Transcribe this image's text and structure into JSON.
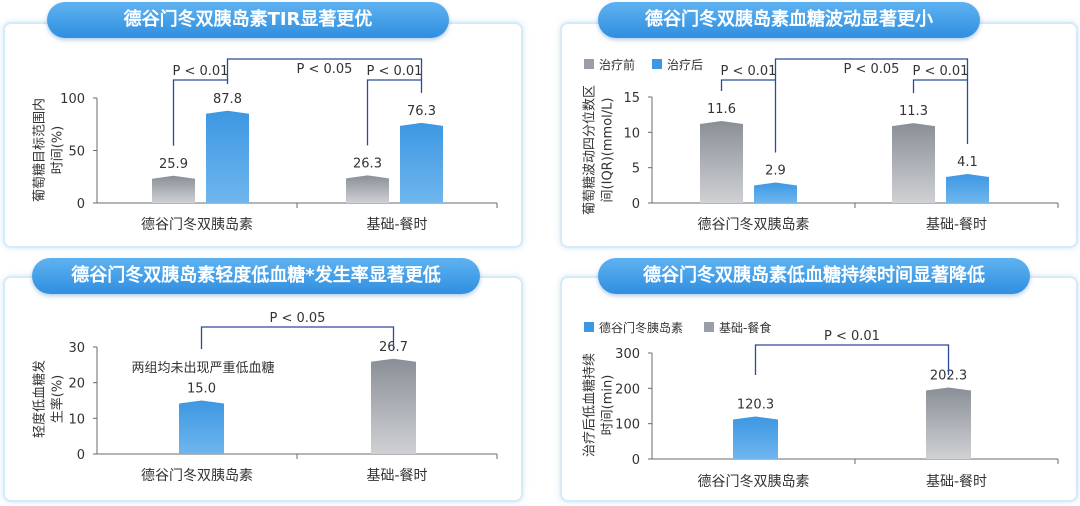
{
  "colors": {
    "gray": "#9a9ea6",
    "blue": "#3d97e2",
    "line": "#2b4b9a",
    "axis": "#6b6b6b"
  },
  "chart_data": [
    {
      "type": "bar",
      "title": "德谷门冬双胰岛素TIR显著更优",
      "ylabel_lines": [
        "葡萄糖目标范围内",
        "时间(%)"
      ],
      "ylim": [
        0,
        100
      ],
      "yticks": [
        "0",
        "50",
        "100"
      ],
      "ytick_values": [
        0,
        50,
        100
      ],
      "categories": [
        "德谷门冬双胰岛素",
        "基础-餐时"
      ],
      "series": [
        {
          "values": [
            25.9,
            26.3
          ],
          "labels": [
            "25.9",
            "26.3"
          ],
          "color": "gray"
        },
        {
          "values": [
            87.8,
            76.3
          ],
          "labels": [
            "87.8",
            "76.3"
          ],
          "color": "blue"
        }
      ],
      "annotations": [
        {
          "text": "P < 0.01",
          "type": "within",
          "group": 0
        },
        {
          "text": "P < 0.01",
          "type": "within",
          "group": 1
        },
        {
          "text": "P < 0.05",
          "type": "between-blue"
        }
      ]
    },
    {
      "type": "bar",
      "title": "德谷门冬双胰岛素血糖波动显著更小",
      "ylabel_lines": [
        "葡萄糖波动四分位数区",
        "间(IQR)(mmol/L)"
      ],
      "ylim": [
        0,
        15
      ],
      "yticks": [
        "0",
        "5",
        "10",
        "15"
      ],
      "ytick_values": [
        0,
        5,
        10,
        15
      ],
      "categories": [
        "德谷门冬双胰岛素",
        "基础-餐时"
      ],
      "legend": [
        {
          "label": "治疗前",
          "color": "gray"
        },
        {
          "label": "治疗后",
          "color": "blue"
        }
      ],
      "series": [
        {
          "name": "治疗前",
          "values": [
            11.6,
            11.3
          ],
          "labels": [
            "11.6",
            "11.3"
          ],
          "color": "gray"
        },
        {
          "name": "治疗后",
          "values": [
            2.9,
            4.1
          ],
          "labels": [
            "2.9",
            "4.1"
          ],
          "color": "blue"
        }
      ],
      "annotations": [
        {
          "text": "P < 0.01",
          "type": "within",
          "group": 0
        },
        {
          "text": "P < 0.01",
          "type": "within",
          "group": 1
        },
        {
          "text": "P < 0.05",
          "type": "between-blue"
        }
      ]
    },
    {
      "type": "bar",
      "title": "德谷门冬双胰岛素轻度低血糖*发生率显著更低",
      "ylabel_lines": [
        "轻度低血糖发",
        "生率(%)"
      ],
      "ylim": [
        0,
        30
      ],
      "yticks": [
        "0",
        "10",
        "20",
        "30"
      ],
      "ytick_values": [
        0,
        10,
        20,
        30
      ],
      "categories": [
        "德谷门冬双胰岛素",
        "基础-餐时"
      ],
      "series": [
        {
          "values": [
            15.0,
            26.7
          ],
          "labels": [
            "15.0",
            "26.7"
          ],
          "colors": [
            "blue",
            "gray"
          ]
        }
      ],
      "note": "两组均未出现严重低血糖",
      "annotations": [
        {
          "text": "P < 0.05",
          "type": "between"
        }
      ]
    },
    {
      "type": "bar",
      "title": "德谷门冬双胰岛素低血糖持续时间显著降低",
      "ylabel_lines": [
        "治疗后低血糖持续",
        "时间(min)"
      ],
      "ylim": [
        0,
        300
      ],
      "yticks": [
        "0",
        "100",
        "200",
        "300"
      ],
      "ytick_values": [
        0,
        100,
        200,
        300
      ],
      "categories": [
        "德谷门冬双胰岛素",
        "基础-餐时"
      ],
      "legend": [
        {
          "label": "德谷门冬胰岛素",
          "color": "blue"
        },
        {
          "label": "基础-餐食",
          "color": "gray"
        }
      ],
      "series": [
        {
          "values": [
            120.3,
            202.3
          ],
          "labels": [
            "120.3",
            "202.3"
          ],
          "colors": [
            "blue",
            "gray"
          ]
        }
      ],
      "annotations": [
        {
          "text": "P < 0.01",
          "type": "between"
        }
      ]
    }
  ]
}
